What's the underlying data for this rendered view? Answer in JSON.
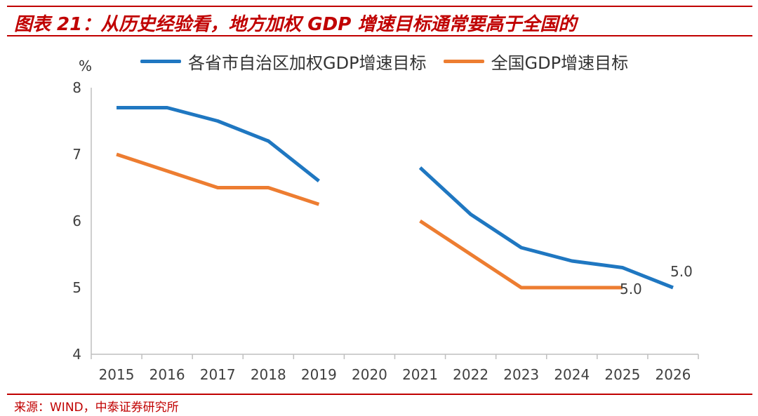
{
  "header": {
    "title": "图表 21：从历史经验看，地方加权 GDP 增速目标通常要高于全国的"
  },
  "footer": {
    "source": "来源：WIND，中泰证券研究所"
  },
  "colors": {
    "accent_red": "#c00000",
    "series_blue": "#1f77c1",
    "series_orange": "#ed7d31"
  },
  "chart_data": {
    "type": "line",
    "title": "",
    "unit_label": "%",
    "xlabel": "",
    "ylabel": "",
    "x": [
      "2015",
      "2016",
      "2017",
      "2018",
      "2019",
      "2020",
      "2021",
      "2022",
      "2023",
      "2024",
      "2025",
      "2026"
    ],
    "ylim": [
      4,
      8
    ],
    "yticks": [
      "4",
      "5",
      "6",
      "7",
      "8"
    ],
    "grid": false,
    "legend_position": "top",
    "series": [
      {
        "name": "各省市自治区加权GDP增速目标",
        "color": "#1f77c1",
        "values": [
          7.7,
          7.7,
          7.5,
          7.2,
          6.6,
          null,
          6.8,
          6.1,
          5.6,
          5.4,
          5.3,
          5.0
        ]
      },
      {
        "name": "全国GDP增速目标",
        "color": "#ed7d31",
        "values": [
          7.0,
          6.75,
          6.5,
          6.5,
          6.25,
          null,
          6.0,
          5.5,
          5.0,
          5.0,
          5.0,
          null
        ]
      }
    ],
    "data_labels": [
      {
        "series": 0,
        "index": 11,
        "text": "5.0"
      },
      {
        "series": 1,
        "index": 10,
        "text": "5.0"
      }
    ]
  }
}
